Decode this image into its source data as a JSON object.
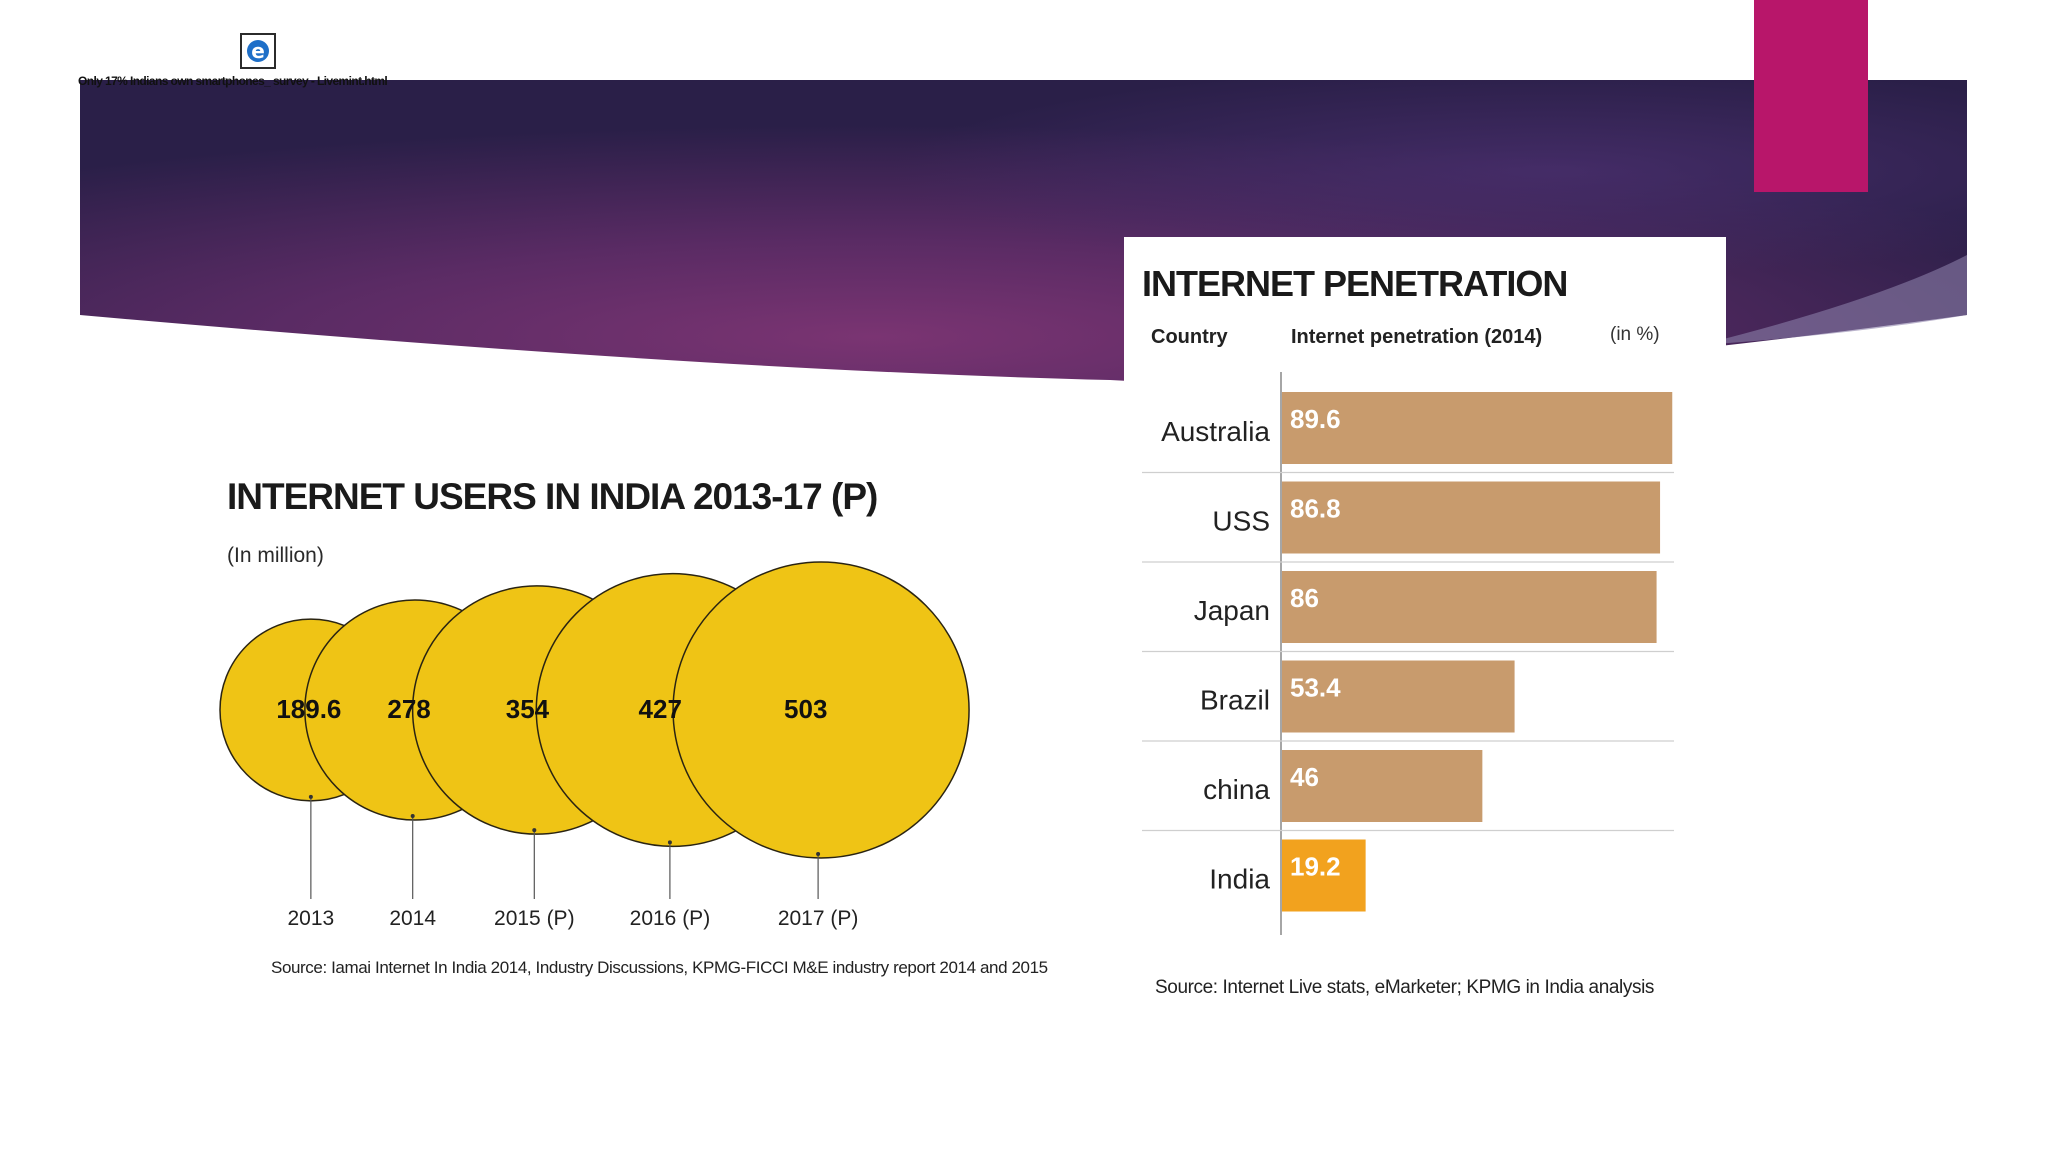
{
  "file_attachment": {
    "icon": "ie-document-icon",
    "label": "Only 17% Indians own smartphones_ survey - Livemint.html"
  },
  "colors": {
    "banner_start": "#3b2254",
    "banner_mid": "#6a2e6a",
    "banner_end": "#241d45",
    "accent_pink": "#b8166a",
    "bubble_fill": "#efc415",
    "bar_fill": "#c89b6d",
    "india_bar_fill": "#f2a21e"
  },
  "chart_data": [
    {
      "type": "bubble",
      "title": "INTERNET USERS IN INDIA 2013-17 (P)",
      "subtitle": "(In million)",
      "categories": [
        "2013",
        "2014",
        "2015 (P)",
        "2016 (P)",
        "2017 (P)"
      ],
      "values": [
        189.6,
        278,
        354,
        427,
        503
      ],
      "value_labels": [
        "189.6",
        "278",
        "354",
        "427",
        "503"
      ],
      "source": "Source: Iamai Internet In India 2014, Industry Discussions, KPMG-FICCI M&E industry report 2014 and 2015"
    },
    {
      "type": "bar",
      "orientation": "horizontal",
      "title": "INTERNET PENETRATION",
      "column_headers": [
        "Country",
        "Internet penetration (2014)"
      ],
      "unit_note": "(in %)",
      "categories": [
        "Australia",
        "USS",
        "Japan",
        "Brazil",
        "china",
        "India"
      ],
      "values": [
        89.6,
        86.8,
        86,
        53.4,
        46,
        19.2
      ],
      "value_labels": [
        "89.6",
        "86.8",
        "86",
        "53.4",
        "46",
        "19.2"
      ],
      "highlight": "India",
      "xlim": [
        0,
        90
      ],
      "source": "Source: Internet Live stats, eMarketer; KPMG in India analysis"
    }
  ]
}
